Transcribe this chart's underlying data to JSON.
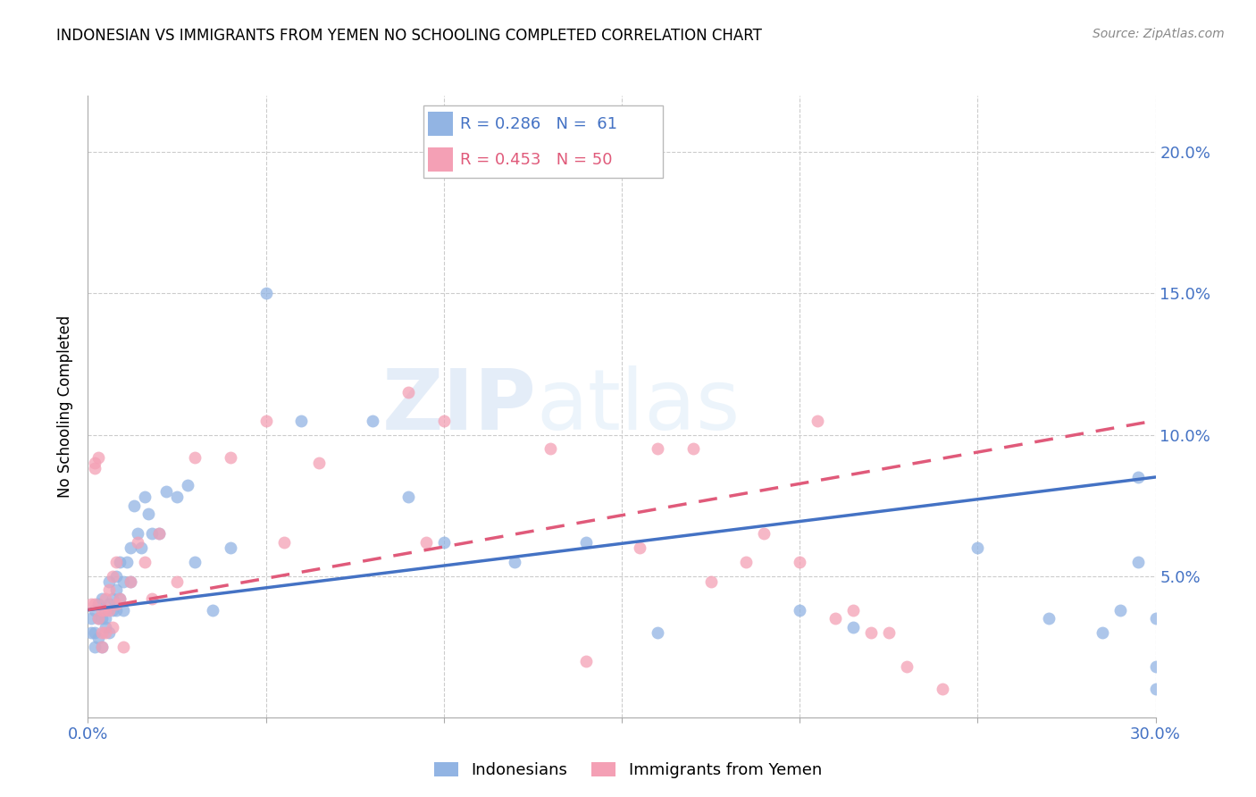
{
  "title": "INDONESIAN VS IMMIGRANTS FROM YEMEN NO SCHOOLING COMPLETED CORRELATION CHART",
  "source": "Source: ZipAtlas.com",
  "ylabel": "No Schooling Completed",
  "xlim": [
    0.0,
    0.3
  ],
  "ylim": [
    0.0,
    0.22
  ],
  "color_blue": "#92b4e3",
  "color_pink": "#f4a0b5",
  "color_blue_line": "#4472c4",
  "color_pink_line": "#e05a7a",
  "color_axis_labels": "#4472c4",
  "watermark_zip": "ZIP",
  "watermark_atlas": "atlas",
  "legend_r1": "R = 0.286",
  "legend_n1": "N =  61",
  "legend_r2": "R = 0.453",
  "legend_n2": "N = 50",
  "blue_line_x": [
    0.0,
    0.3
  ],
  "blue_line_y": [
    0.038,
    0.085
  ],
  "pink_line_x": [
    0.0,
    0.3
  ],
  "pink_line_y": [
    0.038,
    0.105
  ],
  "indonesian_x": [
    0.001,
    0.001,
    0.002,
    0.002,
    0.002,
    0.003,
    0.003,
    0.003,
    0.004,
    0.004,
    0.004,
    0.005,
    0.005,
    0.005,
    0.006,
    0.006,
    0.006,
    0.007,
    0.007,
    0.008,
    0.008,
    0.008,
    0.009,
    0.009,
    0.01,
    0.01,
    0.011,
    0.012,
    0.012,
    0.013,
    0.014,
    0.015,
    0.016,
    0.017,
    0.018,
    0.02,
    0.022,
    0.025,
    0.028,
    0.03,
    0.035,
    0.04,
    0.05,
    0.06,
    0.08,
    0.09,
    0.1,
    0.12,
    0.14,
    0.16,
    0.2,
    0.215,
    0.25,
    0.27,
    0.285,
    0.29,
    0.295,
    0.295,
    0.3,
    0.3,
    0.3
  ],
  "indonesian_y": [
    0.035,
    0.03,
    0.03,
    0.025,
    0.038,
    0.035,
    0.04,
    0.028,
    0.042,
    0.035,
    0.025,
    0.038,
    0.035,
    0.032,
    0.04,
    0.048,
    0.03,
    0.042,
    0.038,
    0.05,
    0.045,
    0.038,
    0.055,
    0.042,
    0.048,
    0.038,
    0.055,
    0.06,
    0.048,
    0.075,
    0.065,
    0.06,
    0.078,
    0.072,
    0.065,
    0.065,
    0.08,
    0.078,
    0.082,
    0.055,
    0.038,
    0.06,
    0.15,
    0.105,
    0.105,
    0.078,
    0.062,
    0.055,
    0.062,
    0.03,
    0.038,
    0.032,
    0.06,
    0.035,
    0.03,
    0.038,
    0.085,
    0.055,
    0.035,
    0.018,
    0.01
  ],
  "yemeni_x": [
    0.001,
    0.002,
    0.002,
    0.002,
    0.003,
    0.003,
    0.004,
    0.004,
    0.004,
    0.005,
    0.005,
    0.005,
    0.006,
    0.006,
    0.007,
    0.007,
    0.008,
    0.008,
    0.009,
    0.01,
    0.012,
    0.014,
    0.016,
    0.018,
    0.02,
    0.025,
    0.03,
    0.04,
    0.05,
    0.055,
    0.065,
    0.09,
    0.095,
    0.1,
    0.13,
    0.14,
    0.155,
    0.16,
    0.17,
    0.175,
    0.185,
    0.19,
    0.2,
    0.205,
    0.21,
    0.215,
    0.22,
    0.225,
    0.23,
    0.24
  ],
  "yemeni_y": [
    0.04,
    0.09,
    0.088,
    0.04,
    0.092,
    0.035,
    0.03,
    0.038,
    0.025,
    0.042,
    0.038,
    0.03,
    0.045,
    0.038,
    0.05,
    0.032,
    0.055,
    0.04,
    0.042,
    0.025,
    0.048,
    0.062,
    0.055,
    0.042,
    0.065,
    0.048,
    0.092,
    0.092,
    0.105,
    0.062,
    0.09,
    0.115,
    0.062,
    0.105,
    0.095,
    0.02,
    0.06,
    0.095,
    0.095,
    0.048,
    0.055,
    0.065,
    0.055,
    0.105,
    0.035,
    0.038,
    0.03,
    0.03,
    0.018,
    0.01
  ]
}
